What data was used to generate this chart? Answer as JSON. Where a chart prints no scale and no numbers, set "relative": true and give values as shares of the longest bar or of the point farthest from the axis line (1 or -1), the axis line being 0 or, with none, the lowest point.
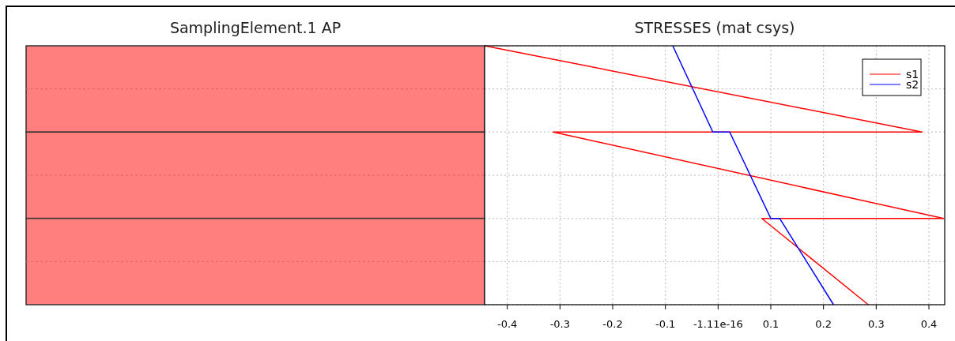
{
  "chart_data": [
    {
      "type": "other",
      "title": "SamplingElement.1 AP"
    },
    {
      "type": "line",
      "title": "STRESSES (mat csys)",
      "relative": true,
      "xlim": [
        -0.443,
        0.43
      ],
      "xticks": [
        -0.4,
        -0.3,
        -0.2,
        -0.1,
        -1.11e-16,
        0.1,
        0.2,
        0.3,
        0.4
      ],
      "series": [
        {
          "name": "s1",
          "color": "#ff0000",
          "x": [
            -0.443,
            0.387,
            -0.313,
            0.428,
            0.083,
            0.285
          ],
          "values": [
            1,
            0.667,
            0.667,
            0.333,
            0.333,
            0
          ]
        },
        {
          "name": "s2",
          "color": "#0000ff",
          "x": [
            -0.086,
            -0.01,
            0.022,
            0.1,
            0.117,
            0.219
          ],
          "values": [
            1,
            0.667,
            0.667,
            0.333,
            0.333,
            0
          ]
        }
      ],
      "grid": true,
      "legend": "top right"
    }
  ]
}
